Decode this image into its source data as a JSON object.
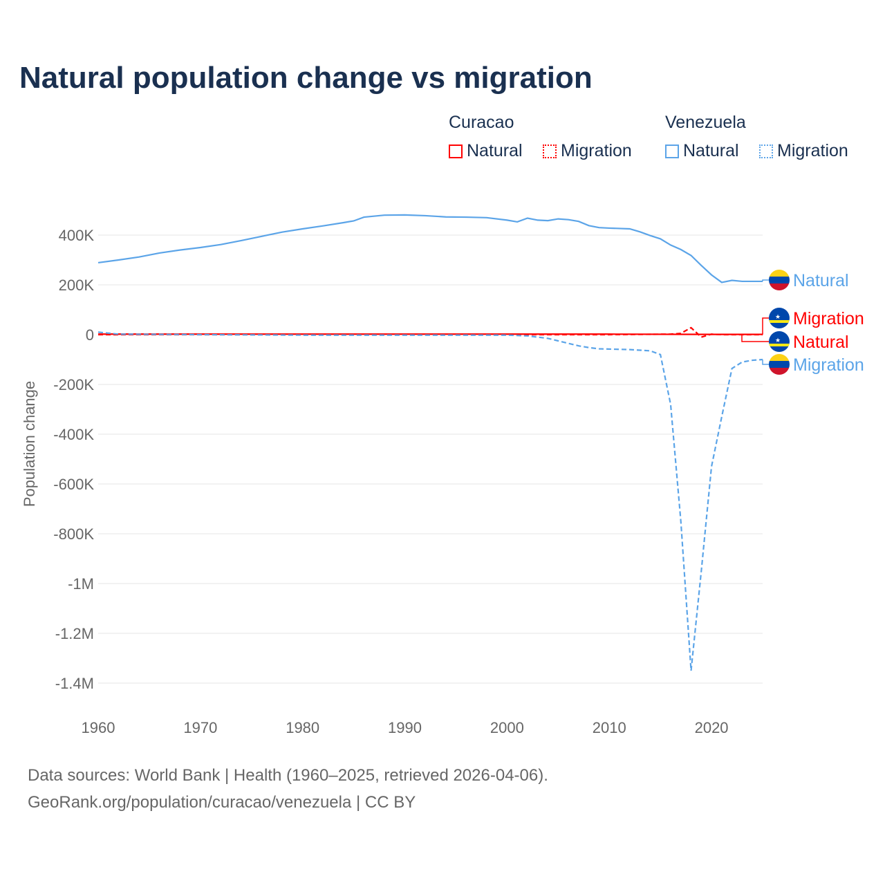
{
  "chart_data": {
    "type": "line",
    "title": "Natural population change vs migration",
    "xlabel": "",
    "ylabel": "Population change",
    "xlim": [
      1960,
      2025
    ],
    "ylim": [
      -1500000,
      500000
    ],
    "x_ticks": [
      "1960",
      "1970",
      "1980",
      "1990",
      "2000",
      "2010",
      "2020"
    ],
    "y_ticks": [
      {
        "v": 400000,
        "label": "400K"
      },
      {
        "v": 200000,
        "label": "200K"
      },
      {
        "v": 0,
        "label": "0"
      },
      {
        "v": -200000,
        "label": "-200K"
      },
      {
        "v": -400000,
        "label": "-400K"
      },
      {
        "v": -600000,
        "label": "-600K"
      },
      {
        "v": -800000,
        "label": "-800K"
      },
      {
        "v": -1000000,
        "label": "-1M"
      },
      {
        "v": -1200000,
        "label": "-1.2M"
      },
      {
        "v": -1400000,
        "label": "-1.4M"
      }
    ],
    "grid": true,
    "legend": {
      "groups": [
        {
          "country": "Curacao",
          "items": [
            "Natural",
            "Migration"
          ]
        },
        {
          "country": "Venezuela",
          "items": [
            "Natural",
            "Migration"
          ]
        }
      ],
      "placement": "top-right"
    },
    "series": [
      {
        "name": "Venezuela Natural",
        "label": "Natural",
        "color": "#5ba4e8",
        "dash": false,
        "flag": "venezuela",
        "x": [
          1960,
          1962,
          1964,
          1966,
          1968,
          1970,
          1972,
          1974,
          1976,
          1978,
          1980,
          1982,
          1984,
          1985,
          1986,
          1988,
          1990,
          1992,
          1994,
          1996,
          1998,
          2000,
          2001,
          2002,
          2003,
          2004,
          2005,
          2006,
          2007,
          2008,
          2009,
          2010,
          2012,
          2013,
          2014,
          2015,
          2016,
          2017,
          2018,
          2019,
          2020,
          2021,
          2022,
          2023,
          2024,
          2025
        ],
        "y": [
          289000,
          300000,
          312000,
          328000,
          340000,
          350000,
          362000,
          378000,
          395000,
          412000,
          425000,
          437000,
          450000,
          457000,
          472000,
          480000,
          481000,
          478000,
          473000,
          472000,
          470000,
          460000,
          453000,
          468000,
          460000,
          458000,
          465000,
          462000,
          455000,
          438000,
          430000,
          428000,
          425000,
          413000,
          398000,
          385000,
          360000,
          342000,
          318000,
          278000,
          240000,
          210000,
          218000,
          214000,
          214000,
          214000
        ]
      },
      {
        "name": "Curacao Migration",
        "label": "Migration",
        "color": "#ff0000",
        "dash": true,
        "flag": "curacao",
        "x": [
          1960,
          1970,
          1980,
          1990,
          2000,
          2010,
          2016,
          2017,
          2018,
          2019,
          2020,
          2021,
          2025
        ],
        "y": [
          0,
          0,
          0,
          0,
          0,
          0,
          2000,
          5000,
          28000,
          -10000,
          2000,
          0,
          0
        ]
      },
      {
        "name": "Curacao Natural",
        "label": "Natural",
        "color": "#ff0000",
        "dash": false,
        "flag": "curacao",
        "x": [
          1960,
          1970,
          1980,
          1990,
          2000,
          2010,
          2020,
          2025
        ],
        "y": [
          2000,
          2000,
          2000,
          2000,
          2000,
          2000,
          1000,
          1000
        ]
      },
      {
        "name": "Venezuela Migration",
        "label": "Migration",
        "color": "#5ba4e8",
        "dash": true,
        "flag": "venezuela",
        "x": [
          1960,
          1962,
          1970,
          1980,
          1990,
          2000,
          2002,
          2003,
          2004,
          2005,
          2006,
          2007,
          2008,
          2009,
          2010,
          2012,
          2014,
          2015,
          2016,
          2017,
          2018,
          2019,
          2020,
          2021,
          2022,
          2023,
          2024,
          2025
        ],
        "y": [
          10000,
          2000,
          0,
          -2000,
          -2000,
          -2000,
          -5000,
          -10000,
          -15000,
          -25000,
          -35000,
          -45000,
          -52000,
          -57000,
          -58000,
          -60000,
          -65000,
          -80000,
          -280000,
          -750000,
          -1350000,
          -950000,
          -530000,
          -330000,
          -136000,
          -110000,
          -103000,
          -100000
        ]
      }
    ]
  },
  "footer": {
    "line1": "Data sources: World Bank | Health (1960–2025, retrieved 2026-04-06).",
    "line2": "GeoRank.org/population/curacao/venezuela | CC BY"
  }
}
